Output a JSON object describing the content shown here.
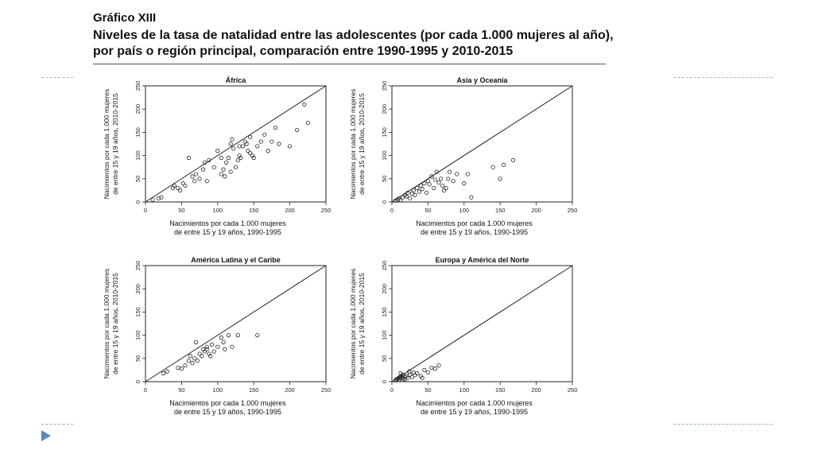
{
  "slide": {
    "label": "Gráfico XIII",
    "title": "Niveles de la tasa de natalidad entre las adolescentes (por cada 1.000 mujeres al año), por país o región principal, comparación entre 1990-1995 y 2010-2015",
    "accent": "#5b88c0"
  },
  "chart_data": [
    {
      "type": "scatter",
      "title": "África",
      "xlabel": "Nacimientos por cada 1.000 mujeres\nde entre 15 y 19 años, 1990-1995",
      "ylabel": "Nacimientos por cada 1.000 mujeres\nde entre 15 y 19 años, 2010-2015",
      "xlim": [
        0,
        250
      ],
      "ylim": [
        0,
        250
      ],
      "xticks": [
        0,
        50,
        100,
        150,
        200,
        250
      ],
      "yticks": [
        0,
        50,
        100,
        150,
        200,
        250
      ],
      "reference_line": "y = x",
      "x": [
        10,
        18,
        22,
        38,
        40,
        45,
        48,
        52,
        55,
        60,
        65,
        68,
        70,
        75,
        80,
        82,
        85,
        88,
        95,
        100,
        105,
        108,
        110,
        112,
        115,
        118,
        120,
        122,
        125,
        128,
        130,
        132,
        135,
        138,
        140,
        142,
        145,
        148,
        150,
        155,
        160,
        165,
        170,
        175,
        180,
        185,
        200,
        210,
        220,
        225,
        105,
        118,
        130,
        145
      ],
      "y": [
        5,
        8,
        10,
        30,
        35,
        30,
        25,
        40,
        35,
        95,
        55,
        45,
        60,
        50,
        70,
        85,
        45,
        90,
        75,
        110,
        60,
        70,
        55,
        85,
        95,
        125,
        135,
        115,
        75,
        90,
        100,
        95,
        120,
        130,
        125,
        110,
        105,
        100,
        95,
        120,
        130,
        145,
        110,
        130,
        160,
        125,
        120,
        155,
        210,
        170,
        95,
        65,
        120,
        140
      ]
    },
    {
      "type": "scatter",
      "title": "Asia y Oceanía",
      "xlabel": "Nacimientos por cada 1.000 mujeres\nde entre 15 y 19 años, 1990-1995",
      "ylabel": "Nacimientos por cada 1.000 mujeres\nde entre 15 y 19 años, 2010-2015",
      "xlim": [
        0,
        250
      ],
      "ylim": [
        0,
        250
      ],
      "xticks": [
        0,
        50,
        100,
        150,
        200,
        250
      ],
      "yticks": [
        0,
        50,
        100,
        150,
        200,
        250
      ],
      "reference_line": "y = x",
      "x": [
        5,
        8,
        10,
        12,
        15,
        18,
        20,
        22,
        25,
        28,
        30,
        32,
        35,
        38,
        40,
        42,
        45,
        48,
        50,
        52,
        55,
        58,
        60,
        62,
        65,
        68,
        70,
        72,
        75,
        78,
        80,
        85,
        90,
        100,
        105,
        110,
        140,
        150,
        155,
        168
      ],
      "y": [
        3,
        5,
        8,
        4,
        10,
        15,
        12,
        20,
        8,
        18,
        25,
        15,
        30,
        22,
        35,
        28,
        40,
        20,
        45,
        38,
        55,
        30,
        48,
        65,
        42,
        50,
        35,
        25,
        30,
        50,
        65,
        45,
        60,
        40,
        60,
        10,
        75,
        50,
        80,
        90
      ]
    },
    {
      "type": "scatter",
      "title": "América Latina y el Caribe",
      "xlabel": "Nacimientos por cada 1.000 mujeres\nde entre 15 y 19 años, 1990-1995",
      "ylabel": "Nacimientos por cada 1.000 mujeres\nde entre 15 y 19 años, 2010-2015",
      "xlim": [
        0,
        250
      ],
      "ylim": [
        0,
        250
      ],
      "xticks": [
        0,
        50,
        100,
        150,
        200,
        250
      ],
      "yticks": [
        0,
        50,
        100,
        150,
        200,
        250
      ],
      "reference_line": "y = x",
      "x": [
        25,
        30,
        45,
        50,
        55,
        60,
        62,
        65,
        68,
        70,
        72,
        75,
        78,
        80,
        82,
        85,
        88,
        90,
        92,
        95,
        100,
        105,
        108,
        110,
        115,
        120,
        128,
        155,
        85
      ],
      "y": [
        18,
        22,
        30,
        28,
        35,
        45,
        55,
        40,
        50,
        85,
        45,
        60,
        55,
        70,
        65,
        75,
        60,
        55,
        80,
        65,
        75,
        95,
        85,
        70,
        100,
        75,
        100,
        100,
        70
      ]
    },
    {
      "type": "scatter",
      "title": "Europa y América del Norte",
      "xlabel": "Nacimientos por cada 1.000 mujeres\nde entre 15 y 19 años, 1990-1995",
      "ylabel": "Nacimientos por cada 1.000 mujeres\nde entre 15 y 19 años, 2010-2015",
      "xlim": [
        0,
        250
      ],
      "ylim": [
        0,
        250
      ],
      "xticks": [
        0,
        50,
        100,
        150,
        200,
        250
      ],
      "yticks": [
        0,
        50,
        100,
        150,
        200,
        250
      ],
      "reference_line": "y = x",
      "x": [
        5,
        6,
        8,
        9,
        10,
        11,
        12,
        13,
        14,
        15,
        16,
        18,
        20,
        22,
        25,
        28,
        30,
        35,
        40,
        45,
        50,
        55,
        60,
        65,
        12,
        18,
        24,
        32,
        42
      ],
      "y": [
        3,
        5,
        6,
        8,
        4,
        10,
        7,
        12,
        9,
        15,
        6,
        10,
        12,
        8,
        15,
        10,
        20,
        18,
        12,
        25,
        20,
        30,
        28,
        35,
        18,
        5,
        22,
        14,
        8
      ]
    }
  ]
}
